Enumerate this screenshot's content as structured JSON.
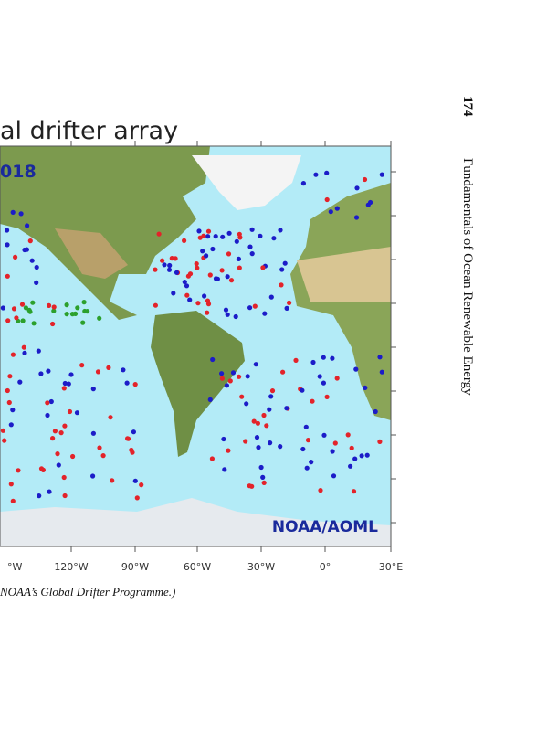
{
  "header": {
    "page_number": "174",
    "book_title": "Fundamentals of Ocean Renewable Energy"
  },
  "figure": {
    "title": "al drifter array",
    "year": "018",
    "credit": "NOAA/AOML",
    "x_axis_labels": [
      "°W",
      "120°W",
      "90°W",
      "60°W",
      "30°W",
      "0°",
      "30°E"
    ],
    "caption": "NOAA’s Global Drifter Programme.)"
  }
}
